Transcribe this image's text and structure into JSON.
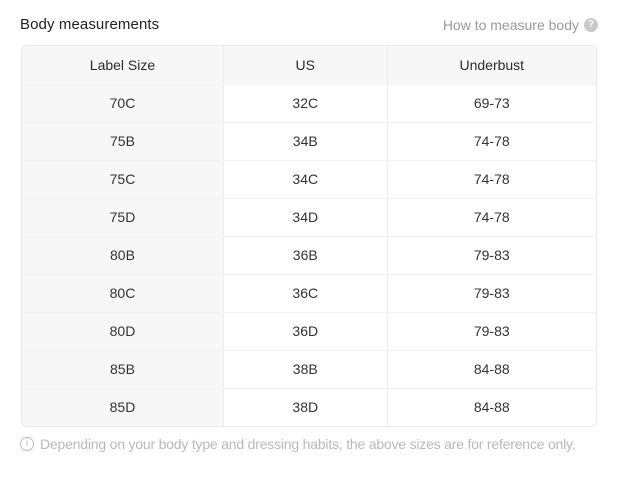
{
  "header": {
    "title": "Body measurements",
    "help_label": "How to measure body",
    "help_icon_glyph": "?"
  },
  "table": {
    "columns": [
      "Label Size",
      "US",
      "Underbust"
    ],
    "rows": [
      [
        "70C",
        "32C",
        "69-73"
      ],
      [
        "75B",
        "34B",
        "74-78"
      ],
      [
        "75C",
        "34C",
        "74-78"
      ],
      [
        "75D",
        "34D",
        "74-78"
      ],
      [
        "80B",
        "36B",
        "79-83"
      ],
      [
        "80C",
        "36C",
        "79-83"
      ],
      [
        "80D",
        "36D",
        "79-83"
      ],
      [
        "85B",
        "38B",
        "84-88"
      ],
      [
        "85D",
        "38D",
        "84-88"
      ]
    ]
  },
  "footer": {
    "info_icon_glyph": "i",
    "note": "Depending on your body type and dressing habits, the above sizes are for reference only."
  },
  "colors": {
    "background": "#ffffff",
    "header_cell_bg": "#f7f7f8",
    "border": "#ebebeb",
    "text": "#333333",
    "title_text": "#222222",
    "muted_text": "#9a9a9a",
    "note_text": "#b9b9b9",
    "help_icon_bg": "#c9c9c9"
  }
}
